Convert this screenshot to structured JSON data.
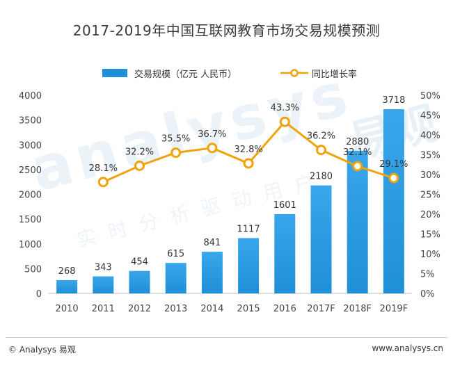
{
  "chart_data": {
    "type": "bar+line",
    "title": "2017-2019年中国互联网教育市场交易规模预测",
    "categories": [
      "2010",
      "2011",
      "2012",
      "2013",
      "2014",
      "2015",
      "2016",
      "2017F",
      "2018F",
      "2019F"
    ],
    "series": [
      {
        "name": "交易规模（亿元 人民币）",
        "type": "bar",
        "axis": "left",
        "values": [
          268,
          343,
          454,
          615,
          841,
          1117,
          1601,
          2180,
          2880,
          3718
        ],
        "labels": [
          "268",
          "343",
          "454",
          "615",
          "841",
          "1117",
          "1601",
          "2180",
          "2880",
          "3718"
        ]
      },
      {
        "name": "同比增长率",
        "type": "line",
        "axis": "right",
        "values": [
          null,
          28.1,
          32.2,
          35.5,
          36.7,
          32.8,
          43.3,
          36.2,
          32.1,
          29.1
        ],
        "labels": [
          "",
          "28.1%",
          "32.2%",
          "35.5%",
          "36.7%",
          "32.8%",
          "43.3%",
          "36.2%",
          "32.1%",
          "29.1%"
        ]
      }
    ],
    "y_left": {
      "min": 0,
      "max": 4000,
      "ticks": [
        "0",
        "500",
        "1000",
        "1500",
        "2000",
        "2500",
        "3000",
        "3500",
        "4000"
      ]
    },
    "y_right": {
      "min": 0,
      "max": 50,
      "ticks": [
        "0%",
        "5%",
        "10%",
        "15%",
        "20%",
        "25%",
        "30%",
        "35%",
        "40%",
        "45%",
        "50%"
      ]
    },
    "grid": false,
    "legend_position": "top"
  },
  "colors": {
    "bar": "#1f8fd8",
    "bar_light": "#3aa6ea",
    "line": "#f0a30a",
    "marker_fill": "#ffffff",
    "axis_text": "#444444"
  },
  "watermark": {
    "main": "analysys",
    "brand": "易观",
    "sub": "实时分析驱动用户"
  },
  "footer": {
    "left": "© Analysys 易观",
    "right": "www.analysys.cn"
  }
}
